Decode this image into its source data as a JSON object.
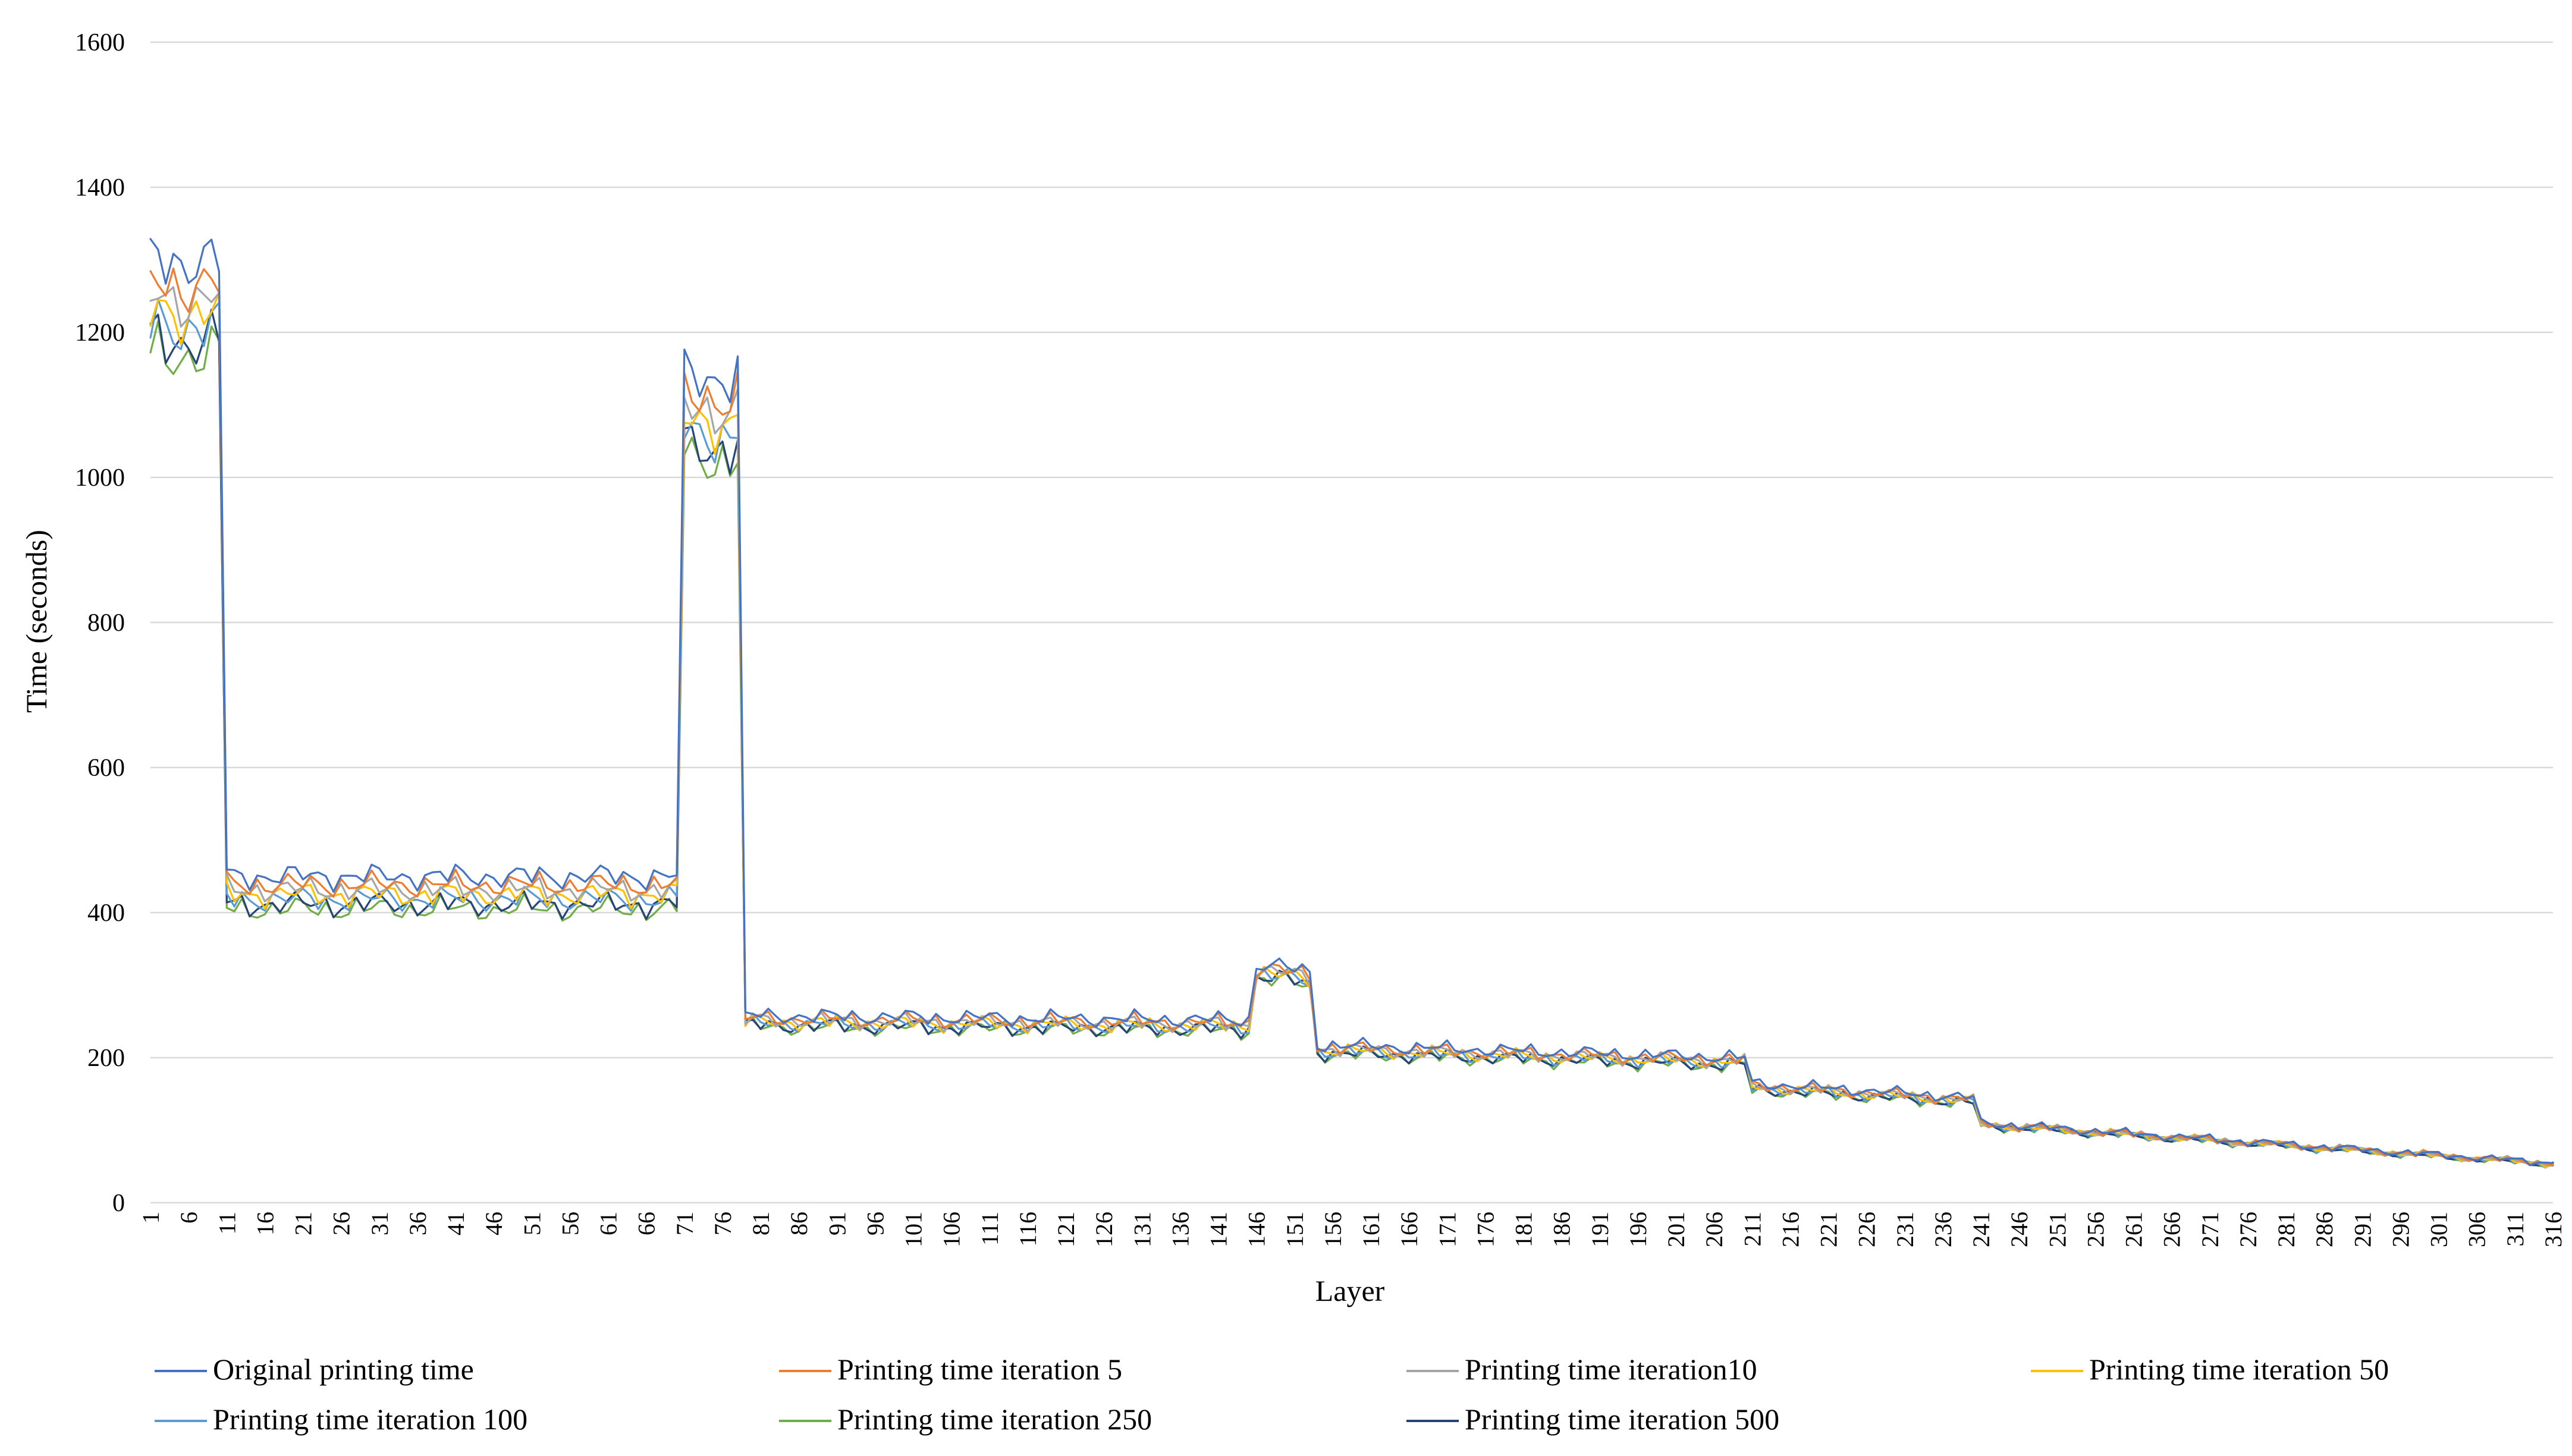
{
  "chart_data": {
    "type": "line",
    "title": "",
    "xlabel": "Layer",
    "ylabel": "Time (seconds)",
    "ylim": [
      0,
      1600
    ],
    "yticks": [
      0,
      200,
      400,
      600,
      800,
      1000,
      1200,
      1400,
      1600
    ],
    "xrange": [
      1,
      316
    ],
    "xtick_labels": [
      "1",
      "6",
      "11",
      "16",
      "21",
      "26",
      "31",
      "36",
      "41",
      "46",
      "51",
      "56",
      "61",
      "66",
      "71",
      "76",
      "81",
      "86",
      "91",
      "96",
      "101",
      "106",
      "111",
      "116",
      "121",
      "126",
      "131",
      "136",
      "141",
      "146",
      "151",
      "156",
      "161",
      "166",
      "171",
      "176",
      "181",
      "186",
      "191",
      "196",
      "201",
      "206",
      "211",
      "216",
      "221",
      "226",
      "231",
      "236",
      "241",
      "246",
      "251",
      "256",
      "261",
      "266",
      "271",
      "276",
      "281",
      "286",
      "291",
      "296",
      "301",
      "306",
      "311",
      "316"
    ],
    "grid": true,
    "legend_position": "bottom",
    "base_profile": {
      "segments": [
        {
          "from": 1,
          "to": 10,
          "start": 1300,
          "end": 1300
        },
        {
          "from": 11,
          "to": 70,
          "start": 450,
          "end": 450
        },
        {
          "from": 71,
          "to": 78,
          "start": 1140,
          "end": 1140
        },
        {
          "from": 79,
          "to": 145,
          "start": 258,
          "end": 252
        },
        {
          "from": 146,
          "to": 153,
          "start": 330,
          "end": 318
        },
        {
          "from": 154,
          "to": 210,
          "start": 218,
          "end": 200
        },
        {
          "from": 211,
          "to": 240,
          "start": 165,
          "end": 145
        },
        {
          "from": 241,
          "to": 316,
          "start": 110,
          "end": 55
        }
      ]
    },
    "series": [
      {
        "name": "Original printing time",
        "color": "#4472C4",
        "scale": 1.0
      },
      {
        "name": "Printing time iteration 5",
        "color": "#ED7D31",
        "scale": 0.975
      },
      {
        "name": "Printing time iteration10",
        "color": "#A5A5A5",
        "scale": 0.96
      },
      {
        "name": "Printing time iteration 50",
        "color": "#FFC000",
        "scale": 0.945
      },
      {
        "name": "Printing time iteration 100",
        "color": "#5B9BD5",
        "scale": 0.93
      },
      {
        "name": "Printing time iteration 250",
        "color": "#70AD47",
        "scale": 0.9
      },
      {
        "name": "Printing time iteration 500",
        "color": "#264478",
        "scale": 0.915
      }
    ]
  }
}
